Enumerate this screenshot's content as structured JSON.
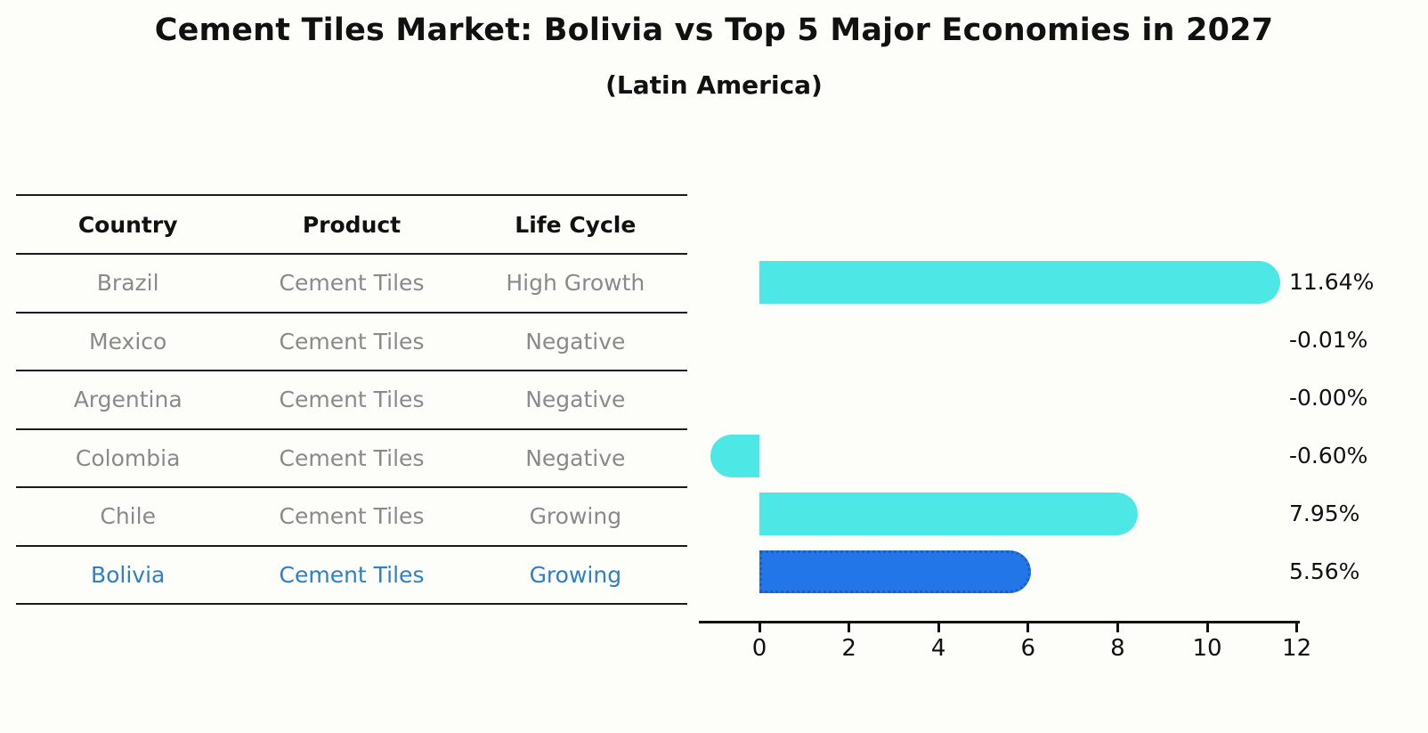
{
  "title": "Cement Tiles Market: Bolivia vs Top 5 Major Economies in 2027",
  "subtitle": "(Latin America)",
  "table": {
    "headers": [
      "Country",
      "Product",
      "Life Cycle"
    ],
    "rows": [
      {
        "country": "Brazil",
        "product": "Cement Tiles",
        "life_cycle": "High Growth"
      },
      {
        "country": "Mexico",
        "product": "Cement Tiles",
        "life_cycle": "Negative"
      },
      {
        "country": "Argentina",
        "product": "Cement Tiles",
        "life_cycle": "Negative"
      },
      {
        "country": "Colombia",
        "product": "Cement Tiles",
        "life_cycle": "Negative"
      },
      {
        "country": "Chile",
        "product": "Cement Tiles",
        "life_cycle": "Growing"
      },
      {
        "country": "Bolivia",
        "product": "Cement Tiles",
        "life_cycle": "Growing"
      }
    ],
    "highlighted_country": "Bolivia"
  },
  "chart_data": {
    "type": "bar",
    "orientation": "horizontal",
    "categories": [
      "Brazil",
      "Mexico",
      "Argentina",
      "Colombia",
      "Chile",
      "Bolivia"
    ],
    "values": [
      11.64,
      -0.01,
      0.0,
      -0.6,
      7.95,
      5.56
    ],
    "value_labels": [
      "11.64%",
      "-0.01%",
      "-0.00%",
      "-0.60%",
      "7.95%",
      "5.56%"
    ],
    "xticks": [
      0,
      2,
      4,
      6,
      8,
      10,
      12
    ],
    "xlim": [
      -1.5,
      12.3
    ],
    "grid": false,
    "legend": null,
    "bar_color": "#4de8e6",
    "highlight_color": "#2276e8",
    "highlight_border_color": "#1a5fc8",
    "highlight_index": 5
  },
  "colors": {
    "background": "#fdfdfa",
    "title_text": "#111111",
    "table_text": "#8a8a8a",
    "highlight_text": "#2e7fc6",
    "rule": "#1a1a1a"
  }
}
